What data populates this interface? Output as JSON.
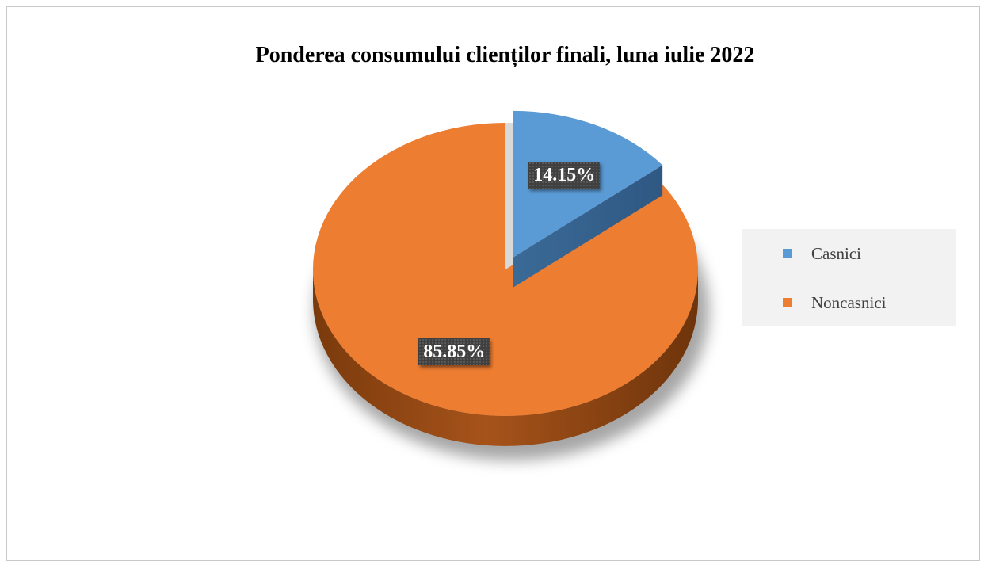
{
  "chart_data": {
    "type": "pie",
    "title": "Ponderea consumului clienților finali, luna iulie 2022",
    "categories": [
      "Casnici",
      "Noncasnici"
    ],
    "values": [
      14.15,
      85.85
    ],
    "labels": [
      "14.15%",
      "85.85%"
    ],
    "colors": [
      "#5b9bd5",
      "#ed7d31"
    ],
    "exploded": [
      "Casnici"
    ],
    "legend": "right",
    "style": "3d"
  }
}
